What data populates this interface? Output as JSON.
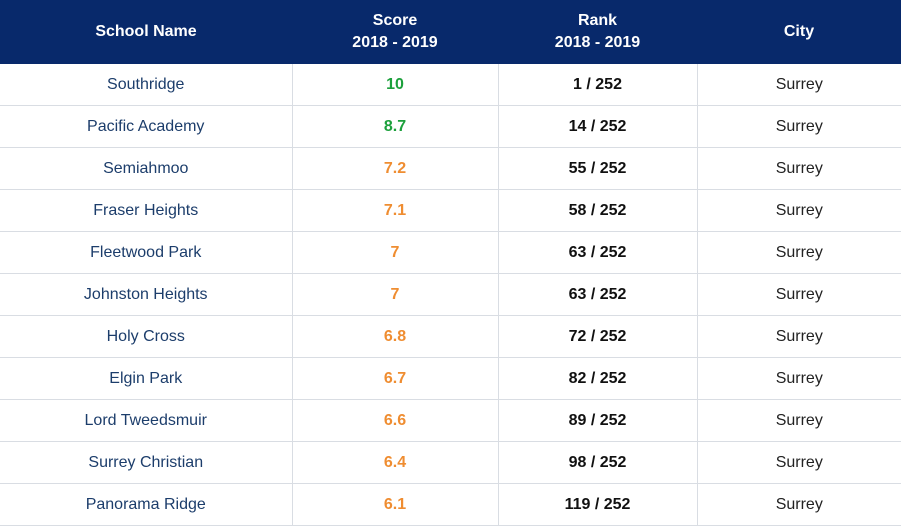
{
  "header": {
    "school_name": "School Name",
    "score": "Score",
    "score_period": "2018 - 2019",
    "rank": "Rank",
    "rank_period": "2018 - 2019",
    "city": "City"
  },
  "colors": {
    "header_bg": "#08296b",
    "score_high": "#1ca03c",
    "score_mid": "#ef8d31"
  },
  "rows": [
    {
      "school": "Southridge",
      "score": "10",
      "rank": "1 / 252",
      "city": "Surrey",
      "score_level": "high"
    },
    {
      "school": "Pacific Academy",
      "score": "8.7",
      "rank": "14 / 252",
      "city": "Surrey",
      "score_level": "high"
    },
    {
      "school": "Semiahmoo",
      "score": "7.2",
      "rank": "55 / 252",
      "city": "Surrey",
      "score_level": "mid"
    },
    {
      "school": "Fraser Heights",
      "score": "7.1",
      "rank": "58 / 252",
      "city": "Surrey",
      "score_level": "mid"
    },
    {
      "school": "Fleetwood Park",
      "score": "7",
      "rank": "63 / 252",
      "city": "Surrey",
      "score_level": "mid"
    },
    {
      "school": "Johnston Heights",
      "score": "7",
      "rank": "63 / 252",
      "city": "Surrey",
      "score_level": "mid"
    },
    {
      "school": "Holy Cross",
      "score": "6.8",
      "rank": "72 / 252",
      "city": "Surrey",
      "score_level": "mid"
    },
    {
      "school": "Elgin Park",
      "score": "6.7",
      "rank": "82 / 252",
      "city": "Surrey",
      "score_level": "mid"
    },
    {
      "school": "Lord Tweedsmuir",
      "score": "6.6",
      "rank": "89 / 252",
      "city": "Surrey",
      "score_level": "mid"
    },
    {
      "school": "Surrey Christian",
      "score": "6.4",
      "rank": "98 / 252",
      "city": "Surrey",
      "score_level": "mid"
    },
    {
      "school": "Panorama Ridge",
      "score": "6.1",
      "rank": "119 / 252",
      "city": "Surrey",
      "score_level": "mid"
    }
  ]
}
